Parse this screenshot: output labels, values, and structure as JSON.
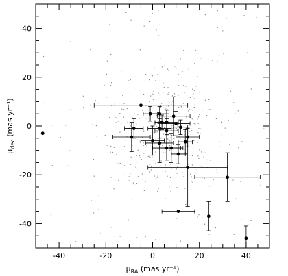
{
  "chart_data": {
    "type": "scatter",
    "xlabel": "μ_RA (mas yr⁻¹)",
    "ylabel": "μ_dec (mas yr⁻¹)",
    "xlabel_main": "μ",
    "xlabel_sub": "RA",
    "xlabel_rest": " (mas yr⁻¹)",
    "ylabel_main": "μ",
    "ylabel_sub": "dec",
    "ylabel_rest": " (mas yr⁻¹)",
    "xlim": [
      -50,
      50
    ],
    "ylim": [
      -50,
      50
    ],
    "grid": false,
    "legend": "none",
    "x_ticks": [
      -40,
      -20,
      0,
      20,
      40
    ],
    "y_ticks": [
      -40,
      -20,
      0,
      20,
      40
    ],
    "colors": {
      "points": "#000000",
      "background": "#8c8c8c"
    },
    "points": [
      {
        "x": -47,
        "y": -3,
        "xerr": 0,
        "yerr": 0
      },
      {
        "x": -5,
        "y": 8.5,
        "xerr": 20,
        "yerr": 0
      },
      {
        "x": -1,
        "y": 5,
        "xerr": 3,
        "yerr": 3
      },
      {
        "x": 3,
        "y": 5,
        "xerr": 4,
        "yerr": 3
      },
      {
        "x": 9,
        "y": 4,
        "xerr": 7,
        "yerr": 8
      },
      {
        "x": 4,
        "y": 1.5,
        "xerr": 3,
        "yerr": 3
      },
      {
        "x": 6,
        "y": 1.5,
        "xerr": 5,
        "yerr": 5
      },
      {
        "x": 10,
        "y": 1,
        "xerr": 6,
        "yerr": 5
      },
      {
        "x": 12,
        "y": -0.5,
        "xerr": 3,
        "yerr": 3
      },
      {
        "x": -8,
        "y": -1,
        "xerr": 4,
        "yerr": 4
      },
      {
        "x": 3,
        "y": -1,
        "xerr": 5,
        "yerr": 4
      },
      {
        "x": 6,
        "y": -2,
        "xerr": 5,
        "yerr": 5
      },
      {
        "x": -9,
        "y": -4.5,
        "xerr": 8,
        "yerr": 6
      },
      {
        "x": 15,
        "y": -4.5,
        "xerr": 5,
        "yerr": 4
      },
      {
        "x": 0,
        "y": -6,
        "xerr": 5,
        "yerr": 6
      },
      {
        "x": 14,
        "y": -6.5,
        "xerr": 3,
        "yerr": 5
      },
      {
        "x": 3,
        "y": -7,
        "xerr": 6,
        "yerr": 8
      },
      {
        "x": 6,
        "y": -9,
        "xerr": 6,
        "yerr": 5
      },
      {
        "x": 8,
        "y": -9,
        "xerr": 5,
        "yerr": 6
      },
      {
        "x": 11,
        "y": -11.5,
        "xerr": 3,
        "yerr": 4
      },
      {
        "x": 15,
        "y": -17,
        "xerr": 17,
        "yerr": 16
      },
      {
        "x": 32,
        "y": -21,
        "xerr": 14,
        "yerr": 10
      },
      {
        "x": 11,
        "y": -35,
        "xerr": 7,
        "yerr": 0
      },
      {
        "x": 24,
        "y": -37,
        "xerr": 0,
        "yerr": 6
      },
      {
        "x": 40,
        "y": -46,
        "xerr": 0,
        "yerr": 5
      }
    ]
  }
}
